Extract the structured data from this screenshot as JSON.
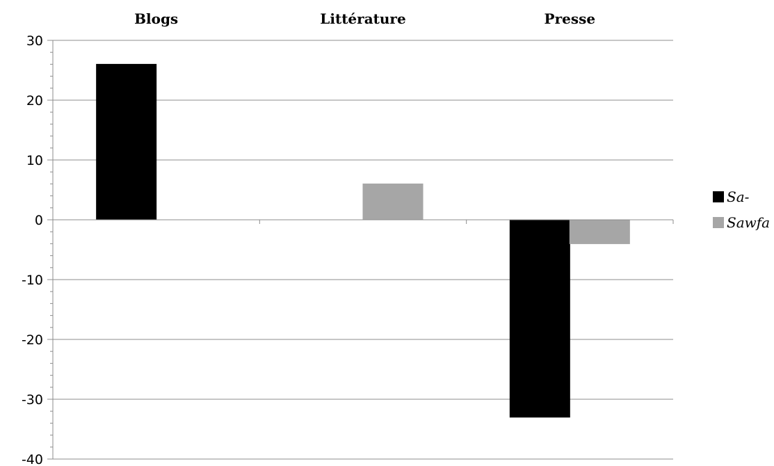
{
  "chart_data": {
    "type": "bar",
    "categories": [
      "Blogs",
      "Littérature",
      "Presse"
    ],
    "series": [
      {
        "name": "Sa-",
        "values": [
          26,
          0,
          -33
        ],
        "color": "#000000"
      },
      {
        "name": "Sawfa",
        "values": [
          0,
          6,
          -4
        ],
        "color": "#a6a6a6"
      }
    ],
    "ylim": [
      -40,
      30
    ],
    "yticks": [
      30,
      20,
      10,
      0,
      -10,
      -20,
      -30,
      -40
    ],
    "xlabel": "",
    "ylabel": "",
    "title": "",
    "grid": true,
    "category_labels_position": "top",
    "legend_position": "right"
  }
}
